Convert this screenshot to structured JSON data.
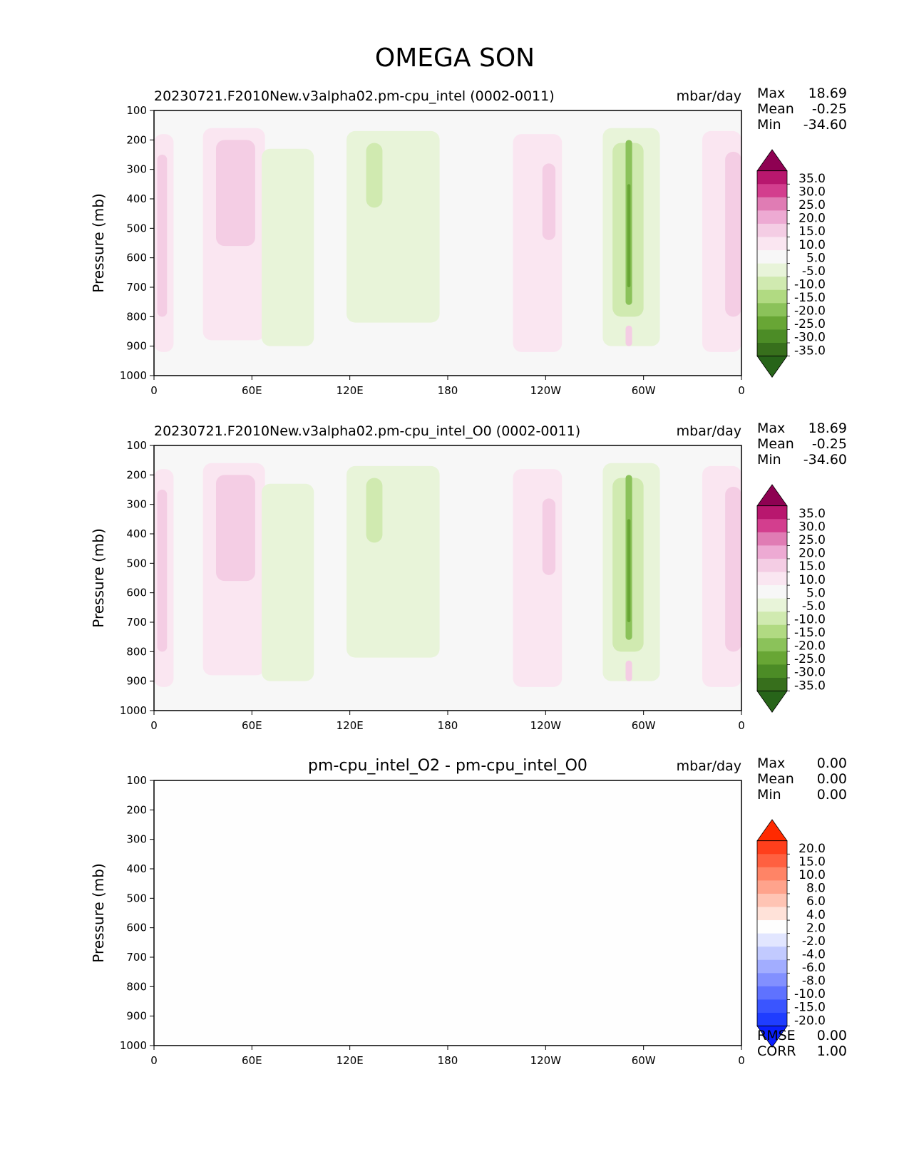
{
  "figure_title": "OMEGA SON",
  "chart_data": [
    {
      "type": "heatmap",
      "title": "20230721.F2010New.v3alpha02.pm-cpu_intel (0002-0011)",
      "units": "mbar/day",
      "ylabel": "Pressure (mb)",
      "xlabel": "",
      "x_ticks": [
        "0",
        "60E",
        "120E",
        "180",
        "120W",
        "60W",
        "0"
      ],
      "x_values": [
        0,
        60,
        120,
        180,
        240,
        300,
        360
      ],
      "xlim": [
        0,
        360
      ],
      "y_ticks": [
        "100",
        "200",
        "300",
        "400",
        "500",
        "600",
        "700",
        "800",
        "900",
        "1000"
      ],
      "ylim": [
        100,
        1000
      ],
      "stats": {
        "max_label": "Max",
        "max": "18.69",
        "mean_label": "Mean",
        "mean": "-0.25",
        "min_label": "Min",
        "min": "-34.60"
      },
      "colorbar_labels": [
        "35.0",
        "30.0",
        "25.0",
        "20.0",
        "15.0",
        "10.0",
        "5.0",
        "-5.0",
        "-10.0",
        "-15.0",
        "-20.0",
        "-25.0",
        "-30.0",
        "-35.0"
      ],
      "colorbar_colors": [
        "#8e0152",
        "#b8176e",
        "#d33e8e",
        "#e07cb4",
        "#edaad3",
        "#f4cde4",
        "#fae6f1",
        "#f7f7f7",
        "#e8f4d9",
        "#d0eab0",
        "#b1da82",
        "#8bc25a",
        "#68a635",
        "#4c8c26",
        "#376f1c",
        "#276419"
      ],
      "regions": [
        {
          "lon": [
            0,
            12
          ],
          "p": [
            180,
            920
          ],
          "level": 10
        },
        {
          "lon": [
            2,
            8
          ],
          "p": [
            250,
            800
          ],
          "level": 15
        },
        {
          "lon": [
            30,
            68
          ],
          "p": [
            160,
            880
          ],
          "level": 10
        },
        {
          "lon": [
            38,
            62
          ],
          "p": [
            200,
            560
          ],
          "level": 15
        },
        {
          "lon": [
            66,
            98
          ],
          "p": [
            230,
            900
          ],
          "level": -5
        },
        {
          "lon": [
            118,
            175
          ],
          "p": [
            170,
            820
          ],
          "level": -5
        },
        {
          "lon": [
            130,
            140
          ],
          "p": [
            210,
            430
          ],
          "level": -10
        },
        {
          "lon": [
            220,
            250
          ],
          "p": [
            180,
            920
          ],
          "level": 10
        },
        {
          "lon": [
            238,
            246
          ],
          "p": [
            280,
            540
          ],
          "level": 15
        },
        {
          "lon": [
            275,
            310
          ],
          "p": [
            160,
            900
          ],
          "level": -5
        },
        {
          "lon": [
            281,
            300
          ],
          "p": [
            210,
            800
          ],
          "level": -10
        },
        {
          "lon": [
            289,
            293
          ],
          "p": [
            200,
            760
          ],
          "level": -20
        },
        {
          "lon": [
            290,
            292
          ],
          "p": [
            350,
            700
          ],
          "level": -25
        },
        {
          "lon": [
            289,
            293
          ],
          "p": [
            830,
            900
          ],
          "level": 15
        },
        {
          "lon": [
            336,
            360
          ],
          "p": [
            170,
            920
          ],
          "level": 10
        },
        {
          "lon": [
            350,
            360
          ],
          "p": [
            240,
            800
          ],
          "level": 15
        }
      ]
    },
    {
      "type": "heatmap",
      "title": "20230721.F2010New.v3alpha02.pm-cpu_intel_O0 (0002-0011)",
      "units": "mbar/day",
      "ylabel": "Pressure (mb)",
      "xlabel": "",
      "x_ticks": [
        "0",
        "60E",
        "120E",
        "180",
        "120W",
        "60W",
        "0"
      ],
      "x_values": [
        0,
        60,
        120,
        180,
        240,
        300,
        360
      ],
      "xlim": [
        0,
        360
      ],
      "y_ticks": [
        "100",
        "200",
        "300",
        "400",
        "500",
        "600",
        "700",
        "800",
        "900",
        "1000"
      ],
      "ylim": [
        100,
        1000
      ],
      "stats": {
        "max_label": "Max",
        "max": "18.69",
        "mean_label": "Mean",
        "mean": "-0.25",
        "min_label": "Min",
        "min": "-34.60"
      },
      "colorbar_labels": [
        "35.0",
        "30.0",
        "25.0",
        "20.0",
        "15.0",
        "10.0",
        "5.0",
        "-5.0",
        "-10.0",
        "-15.0",
        "-20.0",
        "-25.0",
        "-30.0",
        "-35.0"
      ],
      "colorbar_colors": [
        "#8e0152",
        "#b8176e",
        "#d33e8e",
        "#e07cb4",
        "#edaad3",
        "#f4cde4",
        "#fae6f1",
        "#f7f7f7",
        "#e8f4d9",
        "#d0eab0",
        "#b1da82",
        "#8bc25a",
        "#68a635",
        "#4c8c26",
        "#376f1c",
        "#276419"
      ],
      "regions": [
        {
          "lon": [
            0,
            12
          ],
          "p": [
            180,
            920
          ],
          "level": 10
        },
        {
          "lon": [
            2,
            8
          ],
          "p": [
            250,
            800
          ],
          "level": 15
        },
        {
          "lon": [
            30,
            68
          ],
          "p": [
            160,
            880
          ],
          "level": 10
        },
        {
          "lon": [
            38,
            62
          ],
          "p": [
            200,
            560
          ],
          "level": 15
        },
        {
          "lon": [
            66,
            98
          ],
          "p": [
            230,
            900
          ],
          "level": -5
        },
        {
          "lon": [
            118,
            175
          ],
          "p": [
            170,
            820
          ],
          "level": -5
        },
        {
          "lon": [
            130,
            140
          ],
          "p": [
            210,
            430
          ],
          "level": -10
        },
        {
          "lon": [
            220,
            250
          ],
          "p": [
            180,
            920
          ],
          "level": 10
        },
        {
          "lon": [
            238,
            246
          ],
          "p": [
            280,
            540
          ],
          "level": 15
        },
        {
          "lon": [
            275,
            310
          ],
          "p": [
            160,
            900
          ],
          "level": -5
        },
        {
          "lon": [
            281,
            300
          ],
          "p": [
            210,
            800
          ],
          "level": -10
        },
        {
          "lon": [
            289,
            293
          ],
          "p": [
            200,
            760
          ],
          "level": -20
        },
        {
          "lon": [
            290,
            292
          ],
          "p": [
            350,
            700
          ],
          "level": -25
        },
        {
          "lon": [
            289,
            293
          ],
          "p": [
            830,
            900
          ],
          "level": 15
        },
        {
          "lon": [
            336,
            360
          ],
          "p": [
            170,
            920
          ],
          "level": 10
        },
        {
          "lon": [
            350,
            360
          ],
          "p": [
            240,
            800
          ],
          "level": 15
        }
      ]
    },
    {
      "type": "heatmap",
      "title": "pm-cpu_intel_O2 - pm-cpu_intel_O0",
      "units": "mbar/day",
      "ylabel": "Pressure (mb)",
      "xlabel": "",
      "x_ticks": [
        "0",
        "60E",
        "120E",
        "180",
        "120W",
        "60W",
        "0"
      ],
      "x_values": [
        0,
        60,
        120,
        180,
        240,
        300,
        360
      ],
      "xlim": [
        0,
        360
      ],
      "y_ticks": [
        "100",
        "200",
        "300",
        "400",
        "500",
        "600",
        "700",
        "800",
        "900",
        "1000"
      ],
      "ylim": [
        100,
        1000
      ],
      "stats": {
        "max_label": "Max",
        "max": "0.00",
        "mean_label": "Mean",
        "mean": "0.00",
        "min_label": "Min",
        "min": "0.00"
      },
      "extra_stats": {
        "rmse_label": "RMSE",
        "rmse": "0.00",
        "corr_label": "CORR",
        "corr": "1.00"
      },
      "colorbar_labels": [
        "20.0",
        "15.0",
        "10.0",
        "8.0",
        "6.0",
        "4.0",
        "2.0",
        "-2.0",
        "-4.0",
        "-6.0",
        "-8.0",
        "-10.0",
        "-15.0",
        "-20.0"
      ],
      "colorbar_colors": [
        "#ff2a00",
        "#ff3f1c",
        "#ff6040",
        "#ff8466",
        "#ffa38c",
        "#ffc4b4",
        "#ffe2d9",
        "#fefefe",
        "#e2e6ff",
        "#c2caff",
        "#a2adff",
        "#8290ff",
        "#5f72ff",
        "#3a55ff",
        "#1f3dff",
        "#0a1fff"
      ],
      "regions": []
    }
  ]
}
